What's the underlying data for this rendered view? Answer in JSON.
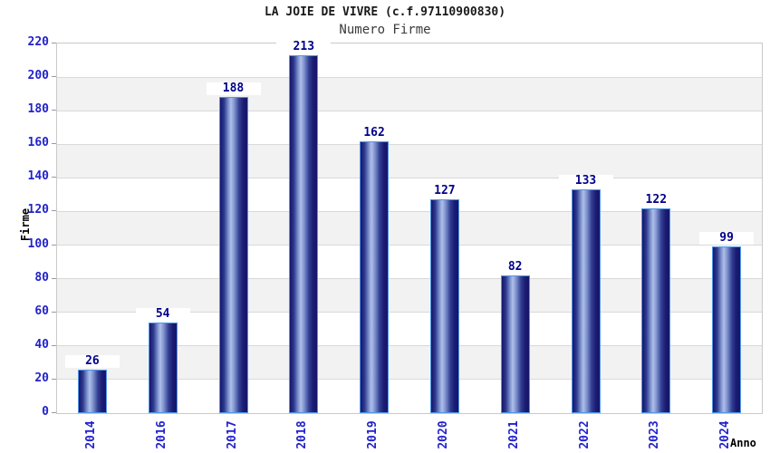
{
  "chart_data": {
    "type": "bar",
    "title": "LA JOIE DE VIVRE (c.f.97110900830)",
    "subtitle": "Numero Firme",
    "xlabel": "Anno",
    "ylabel": "Firme",
    "categories": [
      "2014",
      "2016",
      "2017",
      "2018",
      "2019",
      "2020",
      "2021",
      "2022",
      "2023",
      "2024"
    ],
    "values": [
      26,
      54,
      188,
      213,
      162,
      127,
      82,
      133,
      122,
      99
    ],
    "ylim": [
      0,
      220
    ],
    "ytick_step": 20,
    "grid": "horizontal",
    "band_fill": "alternating",
    "legend_position": "none",
    "colors": {
      "bar_dark": "#15156b",
      "bar_mid": "#333f93",
      "bar_light": "#b0bfea",
      "bar_border": "#4f97e8",
      "tick_label": "#2222cc",
      "value_label": "#00008b",
      "gridline": "#d9d9d9",
      "band": "#f2f2f2",
      "plot_border": "#c9c9c9",
      "title": "#1a1a1a",
      "subtitle": "#3a3a3a",
      "axis_title": "#000000",
      "background": "#ffffff"
    }
  }
}
